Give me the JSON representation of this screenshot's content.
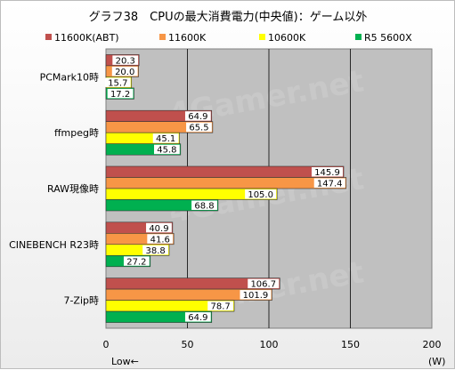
{
  "chart_data": {
    "type": "bar",
    "orientation": "horizontal",
    "title": "グラフ38　CPUの最大消費電力(中央値)：ゲーム以外",
    "categories": [
      "PCMark10時",
      "ffmpeg時",
      "RAW現像時",
      "CINEBENCH R23時",
      "7-Zip時"
    ],
    "series": [
      {
        "name": "11600K(ABT)",
        "color": "#c0504d",
        "values": [
          20.3,
          64.9,
          145.9,
          40.9,
          106.7
        ]
      },
      {
        "name": "11600K",
        "color": "#f79646",
        "values": [
          20.0,
          65.5,
          147.4,
          41.6,
          101.9
        ]
      },
      {
        "name": "10600K",
        "color": "#ffff00",
        "values": [
          15.7,
          45.1,
          105.0,
          38.8,
          78.7
        ]
      },
      {
        "name": "R5 5600X",
        "color": "#00b050",
        "values": [
          17.2,
          45.8,
          68.8,
          27.2,
          64.9
        ]
      }
    ],
    "xlim": [
      0,
      200
    ],
    "xticks": [
      0,
      50,
      100,
      150,
      200
    ],
    "xlabel_left": "Low←",
    "xlabel_right": "(W)",
    "grid": true,
    "legend_position": "top",
    "watermark": "4Gamer.net",
    "plot_background": "#c0c0c0"
  }
}
